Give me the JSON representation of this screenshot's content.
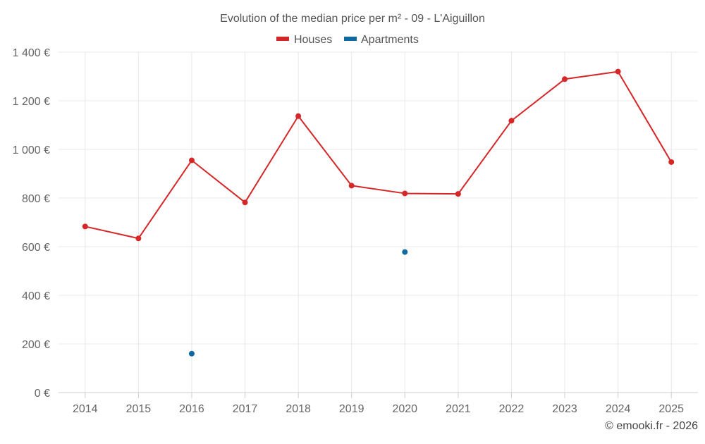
{
  "chart_data": {
    "type": "line",
    "title": "Evolution of the median price per m² - 09 - L'Aiguillon",
    "xlabel": "",
    "ylabel": "",
    "categories": [
      "2014",
      "2015",
      "2016",
      "2017",
      "2018",
      "2019",
      "2020",
      "2021",
      "2022",
      "2023",
      "2024",
      "2025"
    ],
    "ylim": [
      0,
      1400
    ],
    "yticks": [
      0,
      200,
      400,
      600,
      800,
      1000,
      1200,
      1400
    ],
    "ytick_labels": [
      "0 €",
      "200 €",
      "400 €",
      "600 €",
      "800 €",
      "1 000 €",
      "1 200 €",
      "1 400 €"
    ],
    "grid": true,
    "legend_position": "top-center",
    "series": [
      {
        "name": "Houses",
        "color": "#d62728",
        "values": [
          683,
          634,
          955,
          782,
          1137,
          851,
          819,
          817,
          1118,
          1289,
          1320,
          948
        ]
      },
      {
        "name": "Apartments",
        "color": "#0e6aa0",
        "values": [
          null,
          null,
          160,
          null,
          null,
          null,
          578,
          null,
          null,
          null,
          null,
          null
        ]
      }
    ]
  },
  "credit": "© emooki.fr - 2026"
}
